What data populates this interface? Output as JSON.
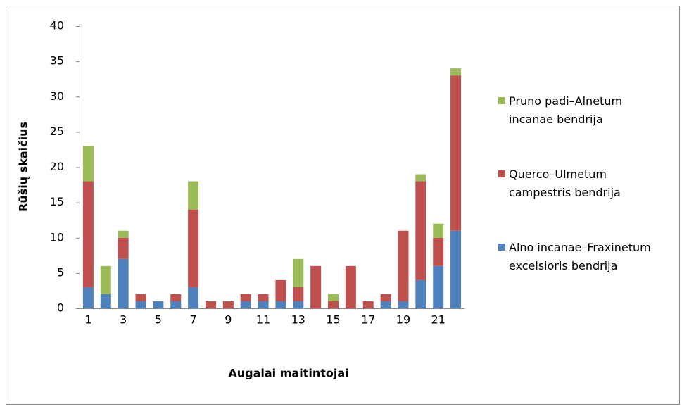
{
  "chart_data": {
    "type": "bar",
    "stacked": true,
    "y_label": "Rūšių skaičius",
    "x_label": "Augalai maitintojai",
    "categories": [
      1,
      null,
      3,
      null,
      5,
      null,
      7,
      null,
      9,
      null,
      11,
      null,
      13,
      null,
      15,
      null,
      17,
      null,
      19,
      null,
      21,
      null
    ],
    "series": [
      {
        "name": "Alno incanae–Fraxinetum excelsioris bendrija",
        "color": "#4f81bd",
        "values": [
          3,
          2,
          7,
          1,
          1,
          1,
          3,
          0,
          0,
          1,
          1,
          1,
          1,
          0,
          0,
          0,
          0,
          1,
          1,
          4,
          6,
          11
        ]
      },
      {
        "name": "Querco–Ulmetum campestris bendrija",
        "color": "#c0504d",
        "values": [
          15,
          0,
          3,
          1,
          0,
          1,
          11,
          1,
          1,
          1,
          1,
          3,
          2,
          6,
          1,
          6,
          1,
          1,
          10,
          14,
          4,
          22
        ]
      },
      {
        "name": "Pruno padi–Alnetum incanae bendrija",
        "color": "#9bbb59",
        "values": [
          5,
          4,
          1,
          0,
          0,
          0,
          4,
          0,
          0,
          0,
          0,
          0,
          4,
          0,
          1,
          0,
          0,
          0,
          0,
          1,
          2,
          1
        ]
      }
    ],
    "ylim": [
      0,
      40
    ],
    "yticks": [
      0,
      5,
      10,
      15,
      20,
      25,
      30,
      35,
      40
    ],
    "grid": false
  }
}
